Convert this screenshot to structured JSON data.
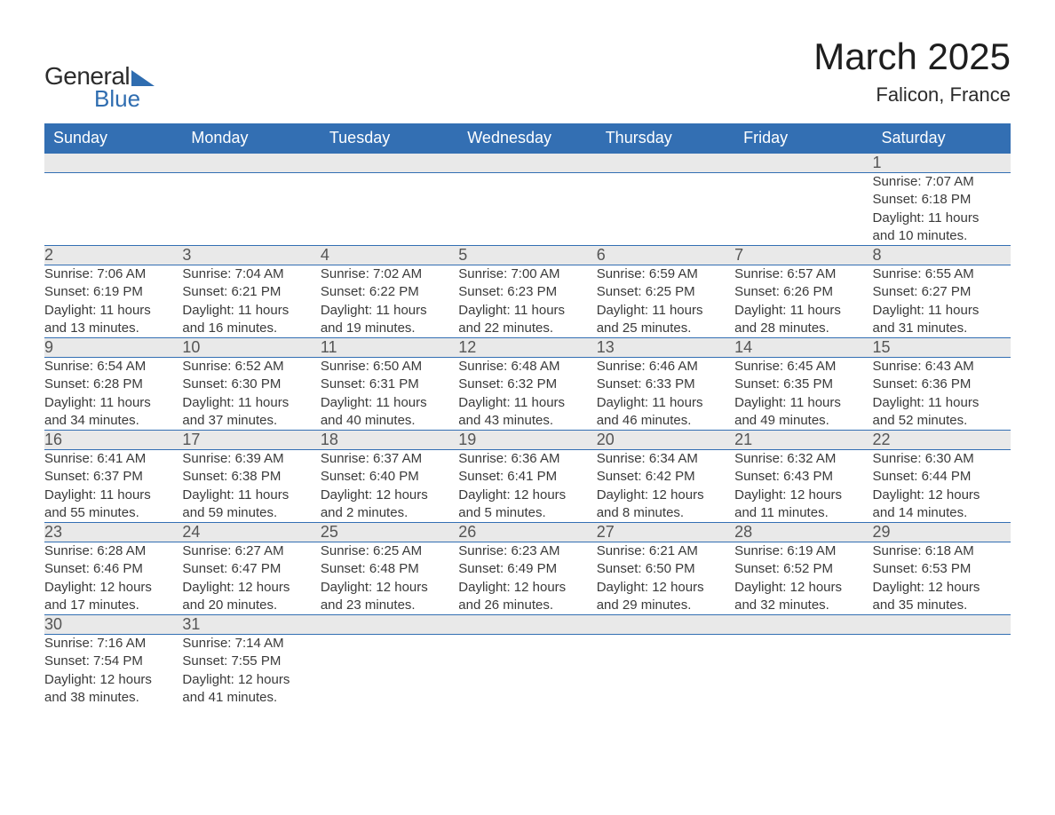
{
  "brand": {
    "word1": "General",
    "word2": "Blue",
    "accent_color": "#2f6db0",
    "text_color": "#2b2b2b"
  },
  "title": {
    "month_year": "March 2025",
    "location": "Falicon, France",
    "title_fontsize": 42,
    "location_fontsize": 22
  },
  "colors": {
    "header_bg": "#336fb3",
    "header_text": "#ffffff",
    "daynum_bg": "#e9e9e9",
    "daynum_text": "#555555",
    "body_text": "#3a3a3a",
    "row_divider": "#336fb3",
    "page_bg": "#ffffff"
  },
  "typography": {
    "header_fontsize": 18,
    "daynum_fontsize": 18,
    "detail_fontsize": 15,
    "font_family": "Arial"
  },
  "calendar": {
    "type": "table",
    "columns": [
      "Sunday",
      "Monday",
      "Tuesday",
      "Wednesday",
      "Thursday",
      "Friday",
      "Saturday"
    ],
    "weeks": [
      [
        null,
        null,
        null,
        null,
        null,
        null,
        {
          "day": "1",
          "sunrise": "Sunrise: 7:07 AM",
          "sunset": "Sunset: 6:18 PM",
          "daylight1": "Daylight: 11 hours",
          "daylight2": "and 10 minutes."
        }
      ],
      [
        {
          "day": "2",
          "sunrise": "Sunrise: 7:06 AM",
          "sunset": "Sunset: 6:19 PM",
          "daylight1": "Daylight: 11 hours",
          "daylight2": "and 13 minutes."
        },
        {
          "day": "3",
          "sunrise": "Sunrise: 7:04 AM",
          "sunset": "Sunset: 6:21 PM",
          "daylight1": "Daylight: 11 hours",
          "daylight2": "and 16 minutes."
        },
        {
          "day": "4",
          "sunrise": "Sunrise: 7:02 AM",
          "sunset": "Sunset: 6:22 PM",
          "daylight1": "Daylight: 11 hours",
          "daylight2": "and 19 minutes."
        },
        {
          "day": "5",
          "sunrise": "Sunrise: 7:00 AM",
          "sunset": "Sunset: 6:23 PM",
          "daylight1": "Daylight: 11 hours",
          "daylight2": "and 22 minutes."
        },
        {
          "day": "6",
          "sunrise": "Sunrise: 6:59 AM",
          "sunset": "Sunset: 6:25 PM",
          "daylight1": "Daylight: 11 hours",
          "daylight2": "and 25 minutes."
        },
        {
          "day": "7",
          "sunrise": "Sunrise: 6:57 AM",
          "sunset": "Sunset: 6:26 PM",
          "daylight1": "Daylight: 11 hours",
          "daylight2": "and 28 minutes."
        },
        {
          "day": "8",
          "sunrise": "Sunrise: 6:55 AM",
          "sunset": "Sunset: 6:27 PM",
          "daylight1": "Daylight: 11 hours",
          "daylight2": "and 31 minutes."
        }
      ],
      [
        {
          "day": "9",
          "sunrise": "Sunrise: 6:54 AM",
          "sunset": "Sunset: 6:28 PM",
          "daylight1": "Daylight: 11 hours",
          "daylight2": "and 34 minutes."
        },
        {
          "day": "10",
          "sunrise": "Sunrise: 6:52 AM",
          "sunset": "Sunset: 6:30 PM",
          "daylight1": "Daylight: 11 hours",
          "daylight2": "and 37 minutes."
        },
        {
          "day": "11",
          "sunrise": "Sunrise: 6:50 AM",
          "sunset": "Sunset: 6:31 PM",
          "daylight1": "Daylight: 11 hours",
          "daylight2": "and 40 minutes."
        },
        {
          "day": "12",
          "sunrise": "Sunrise: 6:48 AM",
          "sunset": "Sunset: 6:32 PM",
          "daylight1": "Daylight: 11 hours",
          "daylight2": "and 43 minutes."
        },
        {
          "day": "13",
          "sunrise": "Sunrise: 6:46 AM",
          "sunset": "Sunset: 6:33 PM",
          "daylight1": "Daylight: 11 hours",
          "daylight2": "and 46 minutes."
        },
        {
          "day": "14",
          "sunrise": "Sunrise: 6:45 AM",
          "sunset": "Sunset: 6:35 PM",
          "daylight1": "Daylight: 11 hours",
          "daylight2": "and 49 minutes."
        },
        {
          "day": "15",
          "sunrise": "Sunrise: 6:43 AM",
          "sunset": "Sunset: 6:36 PM",
          "daylight1": "Daylight: 11 hours",
          "daylight2": "and 52 minutes."
        }
      ],
      [
        {
          "day": "16",
          "sunrise": "Sunrise: 6:41 AM",
          "sunset": "Sunset: 6:37 PM",
          "daylight1": "Daylight: 11 hours",
          "daylight2": "and 55 minutes."
        },
        {
          "day": "17",
          "sunrise": "Sunrise: 6:39 AM",
          "sunset": "Sunset: 6:38 PM",
          "daylight1": "Daylight: 11 hours",
          "daylight2": "and 59 minutes."
        },
        {
          "day": "18",
          "sunrise": "Sunrise: 6:37 AM",
          "sunset": "Sunset: 6:40 PM",
          "daylight1": "Daylight: 12 hours",
          "daylight2": "and 2 minutes."
        },
        {
          "day": "19",
          "sunrise": "Sunrise: 6:36 AM",
          "sunset": "Sunset: 6:41 PM",
          "daylight1": "Daylight: 12 hours",
          "daylight2": "and 5 minutes."
        },
        {
          "day": "20",
          "sunrise": "Sunrise: 6:34 AM",
          "sunset": "Sunset: 6:42 PM",
          "daylight1": "Daylight: 12 hours",
          "daylight2": "and 8 minutes."
        },
        {
          "day": "21",
          "sunrise": "Sunrise: 6:32 AM",
          "sunset": "Sunset: 6:43 PM",
          "daylight1": "Daylight: 12 hours",
          "daylight2": "and 11 minutes."
        },
        {
          "day": "22",
          "sunrise": "Sunrise: 6:30 AM",
          "sunset": "Sunset: 6:44 PM",
          "daylight1": "Daylight: 12 hours",
          "daylight2": "and 14 minutes."
        }
      ],
      [
        {
          "day": "23",
          "sunrise": "Sunrise: 6:28 AM",
          "sunset": "Sunset: 6:46 PM",
          "daylight1": "Daylight: 12 hours",
          "daylight2": "and 17 minutes."
        },
        {
          "day": "24",
          "sunrise": "Sunrise: 6:27 AM",
          "sunset": "Sunset: 6:47 PM",
          "daylight1": "Daylight: 12 hours",
          "daylight2": "and 20 minutes."
        },
        {
          "day": "25",
          "sunrise": "Sunrise: 6:25 AM",
          "sunset": "Sunset: 6:48 PM",
          "daylight1": "Daylight: 12 hours",
          "daylight2": "and 23 minutes."
        },
        {
          "day": "26",
          "sunrise": "Sunrise: 6:23 AM",
          "sunset": "Sunset: 6:49 PM",
          "daylight1": "Daylight: 12 hours",
          "daylight2": "and 26 minutes."
        },
        {
          "day": "27",
          "sunrise": "Sunrise: 6:21 AM",
          "sunset": "Sunset: 6:50 PM",
          "daylight1": "Daylight: 12 hours",
          "daylight2": "and 29 minutes."
        },
        {
          "day": "28",
          "sunrise": "Sunrise: 6:19 AM",
          "sunset": "Sunset: 6:52 PM",
          "daylight1": "Daylight: 12 hours",
          "daylight2": "and 32 minutes."
        },
        {
          "day": "29",
          "sunrise": "Sunrise: 6:18 AM",
          "sunset": "Sunset: 6:53 PM",
          "daylight1": "Daylight: 12 hours",
          "daylight2": "and 35 minutes."
        }
      ],
      [
        {
          "day": "30",
          "sunrise": "Sunrise: 7:16 AM",
          "sunset": "Sunset: 7:54 PM",
          "daylight1": "Daylight: 12 hours",
          "daylight2": "and 38 minutes."
        },
        {
          "day": "31",
          "sunrise": "Sunrise: 7:14 AM",
          "sunset": "Sunset: 7:55 PM",
          "daylight1": "Daylight: 12 hours",
          "daylight2": "and 41 minutes."
        },
        null,
        null,
        null,
        null,
        null
      ]
    ]
  }
}
